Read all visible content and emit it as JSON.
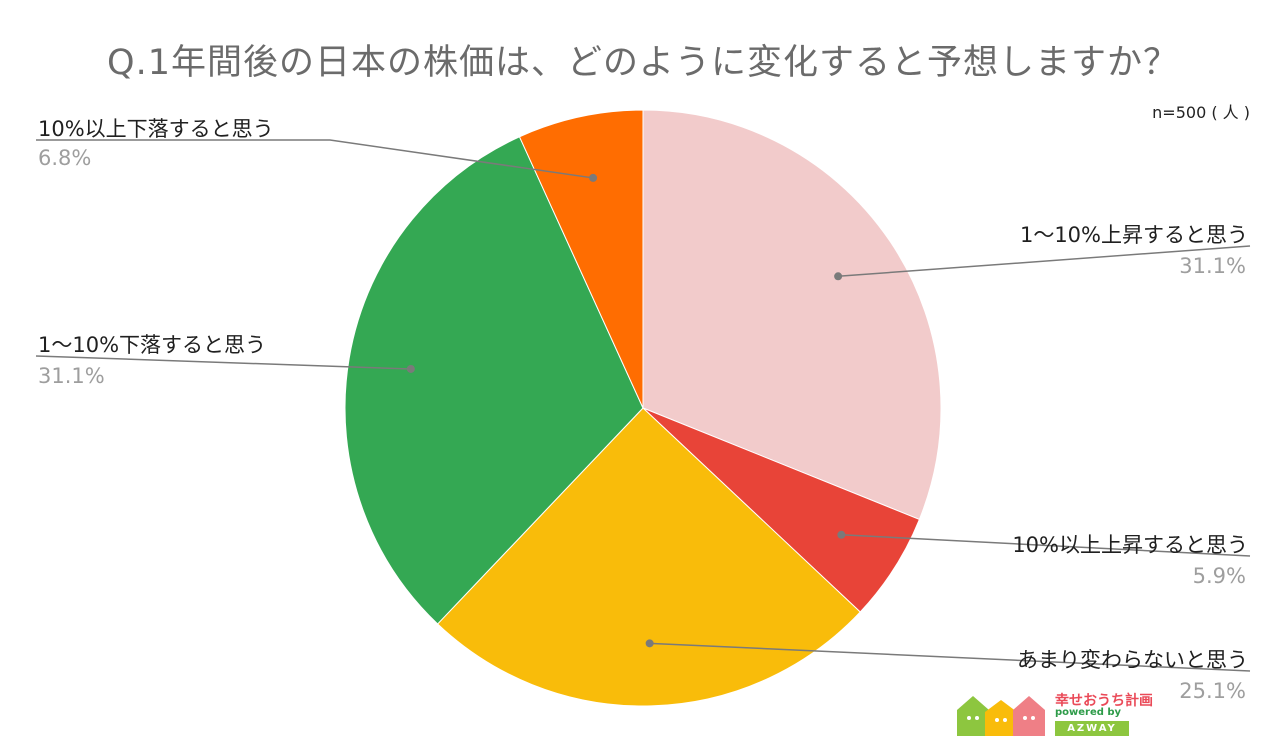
{
  "title": "Q.1年間後の日本の株価は、どのように変化すると予想しますか？",
  "sample_note": "n=500 ( 人 )",
  "chart_data": {
    "type": "pie",
    "title": "Q.1年間後の日本の株価は、どのように変化すると予想しますか？",
    "unit": "%",
    "start": "top (12 o'clock)",
    "direction": "clockwise",
    "slices": [
      {
        "label": "1〜10%上昇すると思う",
        "value": 31.1,
        "display": "31.1%",
        "color": "#f2cbcb"
      },
      {
        "label": "10%以上上昇すると思う",
        "value": 5.9,
        "display": "5.9%",
        "color": "#e84438"
      },
      {
        "label": "あまり変わらないと思う",
        "value": 25.1,
        "display": "25.1%",
        "color": "#f9bc0a"
      },
      {
        "label": "1〜10%下落すると思う",
        "value": 31.1,
        "display": "31.1%",
        "color": "#34a853"
      },
      {
        "label": "10%以上下落すると思う",
        "value": 6.8,
        "display": "6.8%",
        "color": "#ff6d01"
      }
    ]
  },
  "logo": {
    "title": "幸せおうち計画",
    "sub": "powered by",
    "badge": "AZWAY"
  }
}
